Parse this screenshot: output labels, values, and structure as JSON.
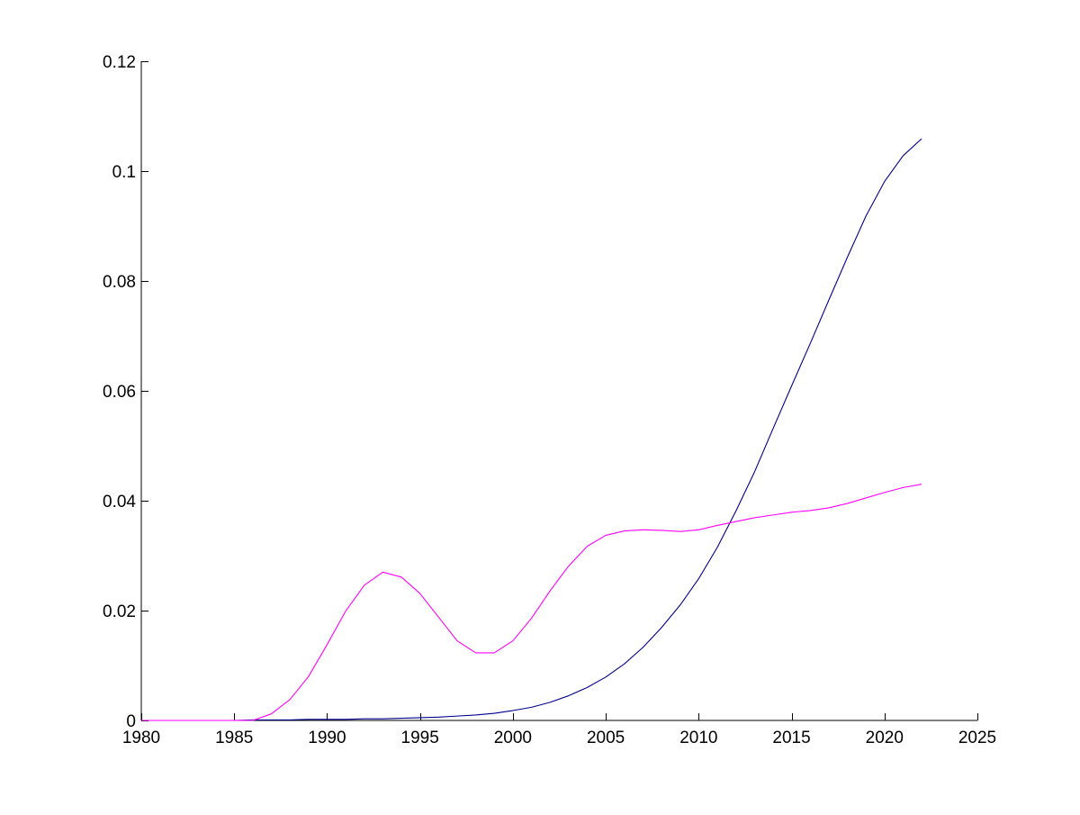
{
  "chart_data": {
    "type": "line",
    "xlim": [
      1980,
      2025
    ],
    "ylim": [
      0,
      0.12
    ],
    "x_ticks": [
      1980,
      1985,
      1990,
      1995,
      2000,
      2005,
      2010,
      2015,
      2020,
      2025
    ],
    "x_tick_labels": [
      "1980",
      "1985",
      "1990",
      "1995",
      "2000",
      "2005",
      "2010",
      "2015",
      "2020",
      "2025"
    ],
    "y_ticks": [
      0,
      0.02,
      0.04,
      0.06,
      0.08,
      0.1,
      0.12
    ],
    "y_tick_labels": [
      "0",
      "0.02",
      "0.04",
      "0.06",
      "0.08",
      "0.1",
      "0.12"
    ],
    "grid": false,
    "legend": "none",
    "x": [
      1980,
      1981,
      1982,
      1983,
      1984,
      1985,
      1986,
      1987,
      1988,
      1989,
      1990,
      1991,
      1992,
      1993,
      1994,
      1995,
      1996,
      1997,
      1998,
      1999,
      2000,
      2001,
      2002,
      2003,
      2004,
      2005,
      2006,
      2007,
      2008,
      2009,
      2010,
      2011,
      2012,
      2013,
      2014,
      2015,
      2016,
      2017,
      2018,
      2019,
      2020,
      2021,
      2022
    ],
    "series": [
      {
        "color": "#00008f",
        "values": [
          0,
          0,
          0,
          0,
          0,
          0,
          0.0001,
          0.0001,
          0.0001,
          0.0002,
          0.0002,
          0.0002,
          0.0003,
          0.0003,
          0.0004,
          0.0005,
          0.0006,
          0.0008,
          0.001,
          0.0013,
          0.0018,
          0.0024,
          0.0033,
          0.0045,
          0.006,
          0.0079,
          0.0103,
          0.0133,
          0.0169,
          0.021,
          0.0258,
          0.0315,
          0.0381,
          0.0452,
          0.0531,
          0.0609,
          0.0686,
          0.0765,
          0.0843,
          0.0918,
          0.0981,
          0.1028,
          0.1059
        ]
      },
      {
        "color": "#ff00ff",
        "values": [
          0,
          0,
          0,
          0,
          0,
          0,
          0,
          0.0012,
          0.0038,
          0.008,
          0.0138,
          0.0199,
          0.0246,
          0.027,
          0.0261,
          0.0231,
          0.0188,
          0.0145,
          0.0123,
          0.0123,
          0.0145,
          0.0186,
          0.0236,
          0.0281,
          0.0317,
          0.0337,
          0.0345,
          0.0347,
          0.0346,
          0.0344,
          0.0347,
          0.0355,
          0.0362,
          0.0369,
          0.0374,
          0.0379,
          0.0382,
          0.0387,
          0.0395,
          0.0405,
          0.0415,
          0.0424,
          0.043
        ]
      }
    ]
  }
}
